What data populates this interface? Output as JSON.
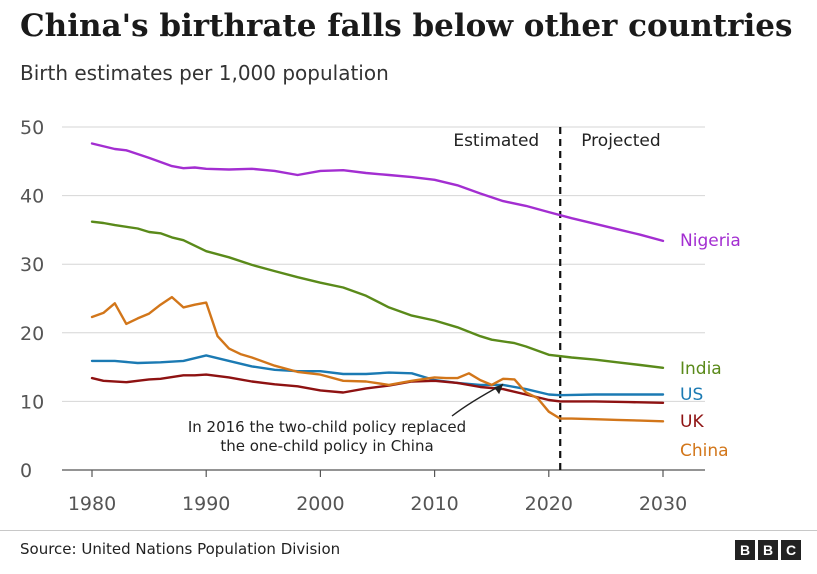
{
  "chart_data": {
    "type": "line",
    "title": "China's birthrate falls below other countries",
    "subtitle": "Birth estimates per 1,000 population",
    "xlim": [
      1980,
      2030
    ],
    "ylim": [
      0,
      50
    ],
    "x_ticks": [
      1980,
      1990,
      2000,
      2010,
      2020,
      2030
    ],
    "y_ticks": [
      0,
      10,
      20,
      30,
      40,
      50
    ],
    "grid": "horizontal",
    "divider": {
      "x": 2021,
      "left_label": "Estimated",
      "right_label": "Projected"
    },
    "annotation": {
      "lines": [
        "In 2016 the two-child policy replaced",
        "the one-child policy in China"
      ],
      "point": [
        2016,
        12.8
      ]
    },
    "series": [
      {
        "name": "Nigeria",
        "color": "#a32ed1",
        "x": [
          1980,
          1982,
          1983,
          1985,
          1987,
          1988,
          1989,
          1990,
          1992,
          1994,
          1996,
          1998,
          2000,
          2002,
          2004,
          2006,
          2008,
          2010,
          2012,
          2014,
          2016,
          2018,
          2020,
          2022,
          2024,
          2026,
          2028,
          2030
        ],
        "y": [
          47.6,
          46.8,
          46.6,
          45.5,
          44.3,
          44.0,
          44.1,
          43.9,
          43.8,
          43.9,
          43.6,
          43.0,
          43.6,
          43.7,
          43.3,
          43.0,
          42.7,
          42.3,
          41.5,
          40.3,
          39.2,
          38.5,
          37.6,
          36.7,
          35.9,
          35.1,
          34.3,
          33.4
        ]
      },
      {
        "name": "India",
        "color": "#5a8a1a",
        "x": [
          1980,
          1981,
          1982,
          1984,
          1985,
          1986,
          1987,
          1988,
          1990,
          1992,
          1994,
          1996,
          1998,
          2000,
          2002,
          2004,
          2006,
          2008,
          2010,
          2012,
          2014,
          2015,
          2017,
          2018,
          2020,
          2022,
          2024,
          2026,
          2028,
          2030
        ],
        "y": [
          36.2,
          36.0,
          35.7,
          35.2,
          34.7,
          34.5,
          33.9,
          33.5,
          31.9,
          31.0,
          29.9,
          29.0,
          28.1,
          27.3,
          26.6,
          25.4,
          23.7,
          22.5,
          21.8,
          20.8,
          19.5,
          19.0,
          18.5,
          18.0,
          16.8,
          16.4,
          16.1,
          15.7,
          15.3,
          14.9
        ]
      },
      {
        "name": "US",
        "color": "#1b7ab3",
        "x": [
          1980,
          1982,
          1984,
          1986,
          1988,
          1990,
          1992,
          1994,
          1996,
          1998,
          2000,
          2002,
          2004,
          2006,
          2008,
          2010,
          2012,
          2014,
          2016,
          2018,
          2020,
          2021,
          2024,
          2027,
          2030
        ],
        "y": [
          15.9,
          15.9,
          15.6,
          15.7,
          15.9,
          16.7,
          15.9,
          15.1,
          14.6,
          14.4,
          14.4,
          14.0,
          14.0,
          14.2,
          14.1,
          13.1,
          12.7,
          12.4,
          12.4,
          11.8,
          11.0,
          10.9,
          11.0,
          11.0,
          11.0
        ]
      },
      {
        "name": "UK",
        "color": "#8e1212",
        "x": [
          1980,
          1981,
          1983,
          1985,
          1986,
          1988,
          1989,
          1990,
          1992,
          1994,
          1996,
          1998,
          2000,
          2002,
          2004,
          2006,
          2008,
          2010,
          2012,
          2014,
          2016,
          2018,
          2020,
          2021,
          2024,
          2027,
          2030
        ],
        "y": [
          13.4,
          13.0,
          12.8,
          13.2,
          13.3,
          13.8,
          13.8,
          13.9,
          13.5,
          12.9,
          12.5,
          12.2,
          11.6,
          11.3,
          11.9,
          12.3,
          12.9,
          13.0,
          12.7,
          12.1,
          11.8,
          11.0,
          10.2,
          10.0,
          10.0,
          9.9,
          9.8
        ]
      },
      {
        "name": "China",
        "color": "#d2761a",
        "x": [
          1980,
          1981,
          1982,
          1983,
          1984,
          1985,
          1986,
          1987,
          1988,
          1989,
          1990,
          1991,
          1992,
          1993,
          1994,
          1996,
          1998,
          2000,
          2002,
          2004,
          2006,
          2008,
          2010,
          2011,
          2012,
          2013,
          2014,
          2015,
          2016,
          2017,
          2018,
          2019,
          2020,
          2021,
          2022,
          2024,
          2026,
          2028,
          2030
        ],
        "y": [
          22.3,
          22.9,
          24.3,
          21.3,
          22.1,
          22.8,
          24.1,
          25.2,
          23.7,
          24.1,
          24.4,
          19.5,
          17.7,
          16.9,
          16.4,
          15.2,
          14.3,
          13.9,
          13.0,
          12.9,
          12.4,
          13.0,
          13.5,
          13.4,
          13.4,
          14.1,
          13.1,
          12.4,
          13.3,
          13.2,
          11.3,
          10.5,
          8.5,
          7.5,
          7.5,
          7.4,
          7.3,
          7.2,
          7.1
        ]
      }
    ]
  },
  "source": "Source: United Nations Population Division",
  "logo_letters": [
    "B",
    "B",
    "C"
  ]
}
